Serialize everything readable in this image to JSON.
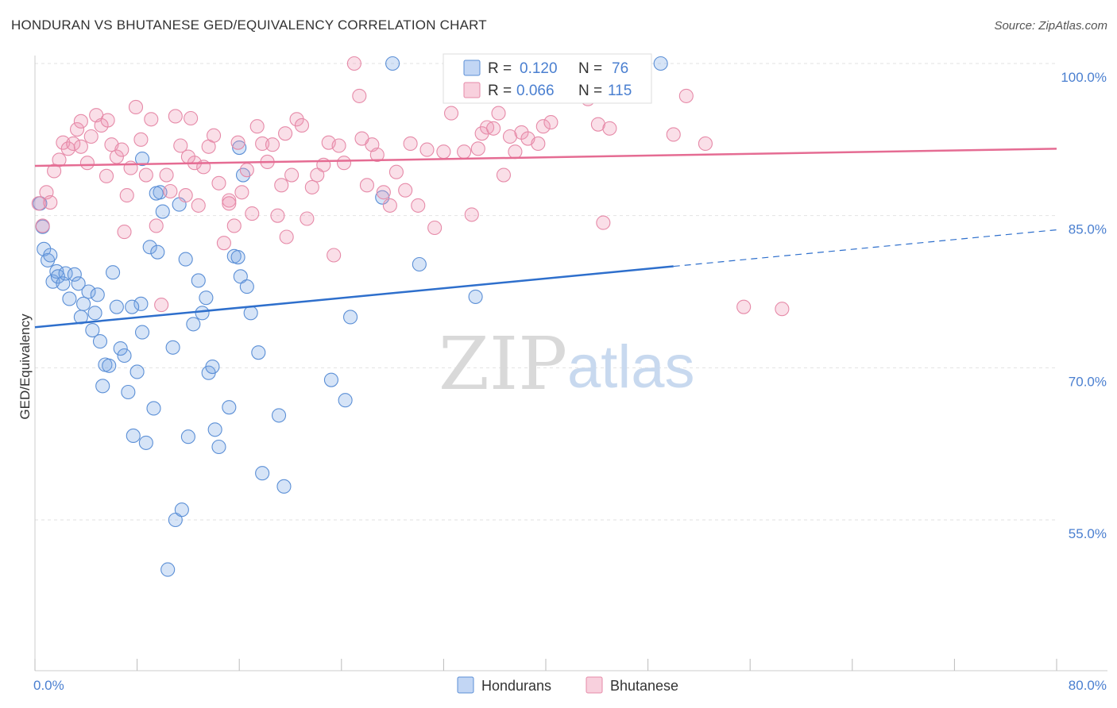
{
  "title": "HONDURAN VS BHUTANESE GED/EQUIVALENCY CORRELATION CHART",
  "source": "Source: ZipAtlas.com",
  "watermark": {
    "zip": "ZIP",
    "atlas": "atlas"
  },
  "colors": {
    "hondurans_fill": "rgba(120,165,230,0.30)",
    "hondurans_stroke": "#5b8fd6",
    "hondurans_line": "#2e6fcc",
    "bhutanese_fill": "rgba(240,150,180,0.30)",
    "bhutanese_stroke": "#e68aa8",
    "bhutanese_line": "#e56c93",
    "tick_label": "#4a7fd0",
    "grid": "#e2e2e2"
  },
  "legend": {
    "r_label": "R =",
    "n_label": "N =",
    "rows": [
      {
        "r": "0.120",
        "n": "76"
      },
      {
        "r": "0.066",
        "n": "115"
      }
    ]
  },
  "bottom_legend": [
    "Hondurans",
    "Bhutanese"
  ],
  "chart_data": {
    "type": "scatter",
    "title": "HONDURAN VS BHUTANESE GED/EQUIVALENCY CORRELATION CHART",
    "xlabel": "",
    "ylabel": "GED/Equivalency",
    "xlim": [
      0,
      80
    ],
    "ylim": [
      40,
      102
    ],
    "x_tick_labels": [
      "0.0%",
      "80.0%"
    ],
    "y_ticks": [
      55,
      70,
      85,
      100
    ],
    "y_tick_labels": [
      "55.0%",
      "70.0%",
      "85.0%",
      "100.0%"
    ],
    "grid": true,
    "legend_position": "top-center",
    "series": [
      {
        "name": "Hondurans",
        "r": 0.12,
        "n": 76,
        "trend": {
          "x0": 0,
          "y0": 74.0,
          "x1": 50,
          "y1": 80.0,
          "dash_to_x": 80,
          "dash_to_y": 83.6
        },
        "points": [
          [
            0.4,
            86.2
          ],
          [
            0.6,
            83.9
          ],
          [
            0.7,
            81.7
          ],
          [
            1.0,
            80.6
          ],
          [
            1.2,
            81.1
          ],
          [
            1.4,
            78.5
          ],
          [
            1.7,
            79.5
          ],
          [
            1.8,
            79.0
          ],
          [
            2.2,
            78.3
          ],
          [
            2.4,
            79.3
          ],
          [
            2.7,
            76.8
          ],
          [
            3.1,
            79.2
          ],
          [
            3.4,
            78.3
          ],
          [
            3.6,
            75.0
          ],
          [
            3.8,
            76.3
          ],
          [
            4.2,
            77.5
          ],
          [
            4.5,
            73.7
          ],
          [
            4.7,
            75.4
          ],
          [
            4.9,
            77.2
          ],
          [
            5.1,
            72.6
          ],
          [
            5.3,
            68.2
          ],
          [
            5.5,
            70.3
          ],
          [
            5.8,
            70.2
          ],
          [
            6.1,
            79.4
          ],
          [
            6.4,
            76.0
          ],
          [
            6.7,
            71.9
          ],
          [
            7.0,
            71.2
          ],
          [
            7.3,
            67.6
          ],
          [
            7.7,
            63.3
          ],
          [
            8.0,
            69.6
          ],
          [
            8.3,
            76.3
          ],
          [
            8.4,
            73.5
          ],
          [
            8.7,
            62.6
          ],
          [
            9.0,
            81.9
          ],
          [
            9.3,
            66.0
          ],
          [
            9.6,
            81.4
          ],
          [
            9.8,
            87.3
          ],
          [
            10.0,
            85.4
          ],
          [
            10.4,
            50.1
          ],
          [
            10.8,
            72.0
          ],
          [
            11.0,
            55.0
          ],
          [
            11.5,
            56.0
          ],
          [
            11.8,
            80.7
          ],
          [
            12.0,
            63.2
          ],
          [
            12.4,
            74.3
          ],
          [
            12.8,
            78.6
          ],
          [
            13.1,
            75.4
          ],
          [
            13.4,
            76.9
          ],
          [
            13.6,
            69.5
          ],
          [
            13.9,
            70.1
          ],
          [
            14.1,
            63.9
          ],
          [
            14.4,
            62.2
          ],
          [
            15.2,
            66.1
          ],
          [
            15.6,
            81.0
          ],
          [
            15.9,
            80.9
          ],
          [
            16.1,
            79.0
          ],
          [
            16.3,
            89.0
          ],
          [
            16.6,
            78.0
          ],
          [
            16.9,
            75.4
          ],
          [
            17.5,
            71.5
          ],
          [
            17.8,
            59.6
          ],
          [
            19.1,
            65.3
          ],
          [
            19.5,
            58.3
          ],
          [
            23.2,
            68.8
          ],
          [
            24.3,
            66.8
          ],
          [
            24.7,
            75.0
          ],
          [
            27.2,
            86.8
          ],
          [
            28.0,
            100.0
          ],
          [
            30.1,
            80.2
          ],
          [
            34.5,
            77.0
          ],
          [
            49.0,
            100.0
          ],
          [
            8.4,
            90.6
          ],
          [
            9.5,
            87.2
          ],
          [
            11.3,
            86.1
          ],
          [
            7.6,
            76.0
          ],
          [
            16.0,
            91.7
          ]
        ]
      },
      {
        "name": "Bhutanese",
        "r": 0.066,
        "n": 115,
        "trend": {
          "x0": 0,
          "y0": 89.9,
          "x1": 80,
          "y1": 91.6
        },
        "points": [
          [
            0.3,
            86.2
          ],
          [
            0.6,
            84.0
          ],
          [
            0.9,
            87.3
          ],
          [
            1.2,
            86.3
          ],
          [
            1.5,
            89.4
          ],
          [
            1.9,
            90.5
          ],
          [
            2.2,
            92.2
          ],
          [
            2.6,
            91.6
          ],
          [
            3.0,
            92.1
          ],
          [
            3.3,
            93.5
          ],
          [
            3.6,
            94.3
          ],
          [
            4.1,
            90.2
          ],
          [
            4.4,
            92.8
          ],
          [
            4.8,
            94.9
          ],
          [
            5.2,
            93.9
          ],
          [
            5.7,
            94.4
          ],
          [
            6.0,
            92.0
          ],
          [
            6.4,
            90.8
          ],
          [
            6.8,
            91.5
          ],
          [
            7.2,
            87.0
          ],
          [
            7.5,
            89.7
          ],
          [
            7.9,
            95.7
          ],
          [
            8.3,
            92.5
          ],
          [
            8.7,
            89.0
          ],
          [
            9.1,
            94.5
          ],
          [
            9.5,
            84.0
          ],
          [
            9.9,
            76.2
          ],
          [
            10.3,
            89.0
          ],
          [
            10.6,
            87.4
          ],
          [
            11.0,
            94.8
          ],
          [
            11.4,
            91.9
          ],
          [
            11.8,
            87.0
          ],
          [
            12.2,
            94.6
          ],
          [
            12.5,
            90.2
          ],
          [
            12.8,
            86.0
          ],
          [
            13.2,
            89.8
          ],
          [
            13.6,
            91.8
          ],
          [
            14.0,
            92.9
          ],
          [
            14.4,
            88.2
          ],
          [
            14.8,
            82.3
          ],
          [
            15.2,
            86.5
          ],
          [
            15.6,
            84.0
          ],
          [
            15.9,
            92.2
          ],
          [
            16.2,
            87.3
          ],
          [
            16.6,
            89.5
          ],
          [
            17.0,
            85.2
          ],
          [
            17.4,
            93.8
          ],
          [
            17.8,
            92.1
          ],
          [
            18.2,
            90.3
          ],
          [
            18.6,
            92.0
          ],
          [
            19.0,
            85.0
          ],
          [
            19.3,
            88.0
          ],
          [
            19.7,
            82.9
          ],
          [
            20.1,
            89.0
          ],
          [
            20.5,
            94.5
          ],
          [
            20.9,
            93.9
          ],
          [
            21.3,
            84.7
          ],
          [
            21.7,
            87.8
          ],
          [
            22.1,
            89.0
          ],
          [
            22.6,
            90.0
          ],
          [
            23.0,
            92.2
          ],
          [
            23.4,
            81.1
          ],
          [
            23.8,
            91.9
          ],
          [
            24.2,
            90.2
          ],
          [
            25.0,
            100.0
          ],
          [
            25.4,
            96.8
          ],
          [
            26.0,
            88.0
          ],
          [
            26.4,
            92.0
          ],
          [
            26.8,
            91.0
          ],
          [
            27.3,
            87.3
          ],
          [
            27.8,
            86.0
          ],
          [
            28.3,
            89.3
          ],
          [
            29.0,
            87.5
          ],
          [
            29.4,
            92.1
          ],
          [
            30.0,
            86.0
          ],
          [
            30.7,
            91.5
          ],
          [
            31.3,
            83.8
          ],
          [
            32.0,
            91.3
          ],
          [
            32.6,
            95.1
          ],
          [
            33.0,
            97.1
          ],
          [
            33.6,
            91.3
          ],
          [
            34.2,
            85.1
          ],
          [
            34.7,
            91.6
          ],
          [
            35.0,
            93.1
          ],
          [
            35.4,
            93.7
          ],
          [
            35.9,
            93.6
          ],
          [
            36.3,
            95.1
          ],
          [
            36.7,
            89.0
          ],
          [
            37.2,
            92.8
          ],
          [
            37.6,
            91.3
          ],
          [
            38.1,
            93.2
          ],
          [
            38.6,
            92.6
          ],
          [
            39.0,
            97.0
          ],
          [
            39.4,
            92.1
          ],
          [
            39.8,
            93.8
          ],
          [
            40.4,
            94.2
          ],
          [
            40.8,
            97.3
          ],
          [
            42.0,
            99.8
          ],
          [
            42.8,
            97.5
          ],
          [
            43.3,
            96.5
          ],
          [
            44.1,
            94.0
          ],
          [
            45.0,
            93.6
          ],
          [
            55.5,
            76.0
          ],
          [
            58.5,
            75.8
          ],
          [
            50.0,
            93.0
          ],
          [
            51.0,
            96.8
          ],
          [
            52.5,
            92.1
          ],
          [
            44.5,
            84.3
          ],
          [
            25.6,
            92.6
          ],
          [
            19.6,
            93.1
          ],
          [
            15.2,
            86.2
          ],
          [
            12.0,
            90.8
          ],
          [
            7.0,
            83.4
          ],
          [
            5.6,
            88.9
          ],
          [
            3.6,
            91.8
          ]
        ]
      }
    ]
  }
}
